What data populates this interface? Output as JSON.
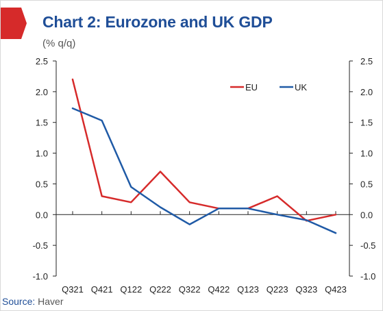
{
  "header": {
    "title": "Chart 2: Eurozone and UK GDP",
    "unit": "(% q/q)"
  },
  "footer": {
    "source_label": "Source:",
    "source_value": "Haver"
  },
  "colors": {
    "eu": "#d62a2a",
    "uk": "#1f5aa6",
    "title": "#1f4e97",
    "flag": "#d62a2a"
  },
  "chart_data": {
    "type": "line",
    "title": "Chart 2: Eurozone and UK GDP",
    "ylabel": "(% q/q)",
    "xlabel": "",
    "categories": [
      "Q321",
      "Q421",
      "Q122",
      "Q222",
      "Q322",
      "Q422",
      "Q123",
      "Q223",
      "Q323",
      "Q423"
    ],
    "series": [
      {
        "name": "EU",
        "values": [
          2.2,
          0.3,
          0.2,
          0.7,
          0.2,
          0.1,
          0.1,
          0.3,
          -0.1,
          0.0
        ]
      },
      {
        "name": "UK",
        "values": [
          1.73,
          1.53,
          0.45,
          0.12,
          -0.16,
          0.1,
          0.1,
          0.0,
          -0.09,
          -0.3
        ]
      }
    ],
    "ylim": [
      -1.0,
      2.5
    ],
    "yticks": [
      "2.5",
      "2.0",
      "1.5",
      "1.0",
      "0.5",
      "0.0",
      "-0.5",
      "-1.0"
    ],
    "ytick_values": [
      2.5,
      2.0,
      1.5,
      1.0,
      0.5,
      0.0,
      -0.5,
      -1.0
    ],
    "dual_axis": true,
    "grid": false,
    "legend_position": "top-right"
  }
}
